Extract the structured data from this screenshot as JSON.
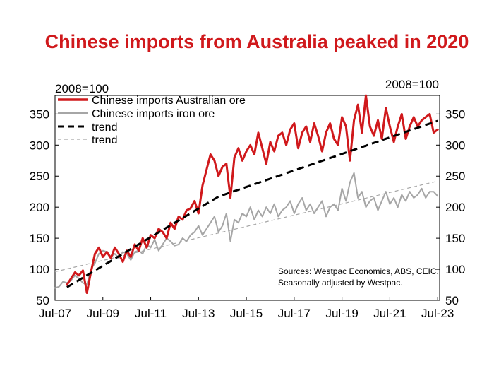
{
  "chart_data": {
    "type": "line",
    "title": "Chinese imports from Australia peaked in 2020",
    "left_unit": "2008=100",
    "right_unit": "2008=100",
    "ylim": [
      50,
      380
    ],
    "xlim": [
      "2007-07",
      "2023-08"
    ],
    "y_ticks": [
      "50",
      "100",
      "150",
      "200",
      "250",
      "300",
      "350"
    ],
    "x_ticks": [
      "Jul-07",
      "Jul-09",
      "Jul-11",
      "Jul-13",
      "Jul-15",
      "Jul-17",
      "Jul-19",
      "Jul-21",
      "Jul-23"
    ],
    "grid": false,
    "legend_position": "top-left",
    "source_note": [
      "Sources: Westpac Economics, ABS, CEIC.",
      "Seasonally adjusted by Westpac."
    ],
    "series": [
      {
        "name": "Chinese imports Australian ore",
        "color": "#d0191c",
        "style": "solid",
        "x": [
          "2008-01",
          "2008-03",
          "2008-05",
          "2008-07",
          "2008-09",
          "2008-11",
          "2009-01",
          "2009-03",
          "2009-05",
          "2009-07",
          "2009-09",
          "2009-11",
          "2010-01",
          "2010-03",
          "2010-05",
          "2010-07",
          "2010-09",
          "2010-11",
          "2011-01",
          "2011-03",
          "2011-05",
          "2011-07",
          "2011-09",
          "2011-11",
          "2012-01",
          "2012-03",
          "2012-05",
          "2012-07",
          "2012-09",
          "2012-11",
          "2013-01",
          "2013-03",
          "2013-05",
          "2013-07",
          "2013-09",
          "2013-11",
          "2014-01",
          "2014-03",
          "2014-05",
          "2014-07",
          "2014-09",
          "2014-11",
          "2015-01",
          "2015-03",
          "2015-05",
          "2015-07",
          "2015-09",
          "2015-11",
          "2016-01",
          "2016-03",
          "2016-05",
          "2016-07",
          "2016-09",
          "2016-11",
          "2017-01",
          "2017-03",
          "2017-05",
          "2017-07",
          "2017-09",
          "2017-11",
          "2018-01",
          "2018-03",
          "2018-05",
          "2018-07",
          "2018-09",
          "2018-11",
          "2019-01",
          "2019-03",
          "2019-05",
          "2019-07",
          "2019-09",
          "2019-11",
          "2020-01",
          "2020-03",
          "2020-05",
          "2020-07",
          "2020-09",
          "2020-11",
          "2021-01",
          "2021-03",
          "2021-05",
          "2021-07",
          "2021-09",
          "2021-11",
          "2022-01",
          "2022-03",
          "2022-05",
          "2022-07",
          "2022-09",
          "2022-11",
          "2023-01",
          "2023-03",
          "2023-05",
          "2023-07"
        ],
        "values": [
          75,
          85,
          95,
          90,
          98,
          62,
          95,
          125,
          135,
          120,
          128,
          118,
          135,
          125,
          112,
          130,
          120,
          140,
          130,
          150,
          135,
          155,
          150,
          165,
          160,
          150,
          175,
          165,
          185,
          180,
          195,
          198,
          210,
          190,
          235,
          260,
          285,
          275,
          250,
          265,
          270,
          215,
          280,
          295,
          275,
          290,
          300,
          285,
          320,
          295,
          270,
          305,
          290,
          315,
          320,
          300,
          325,
          335,
          295,
          320,
          330,
          305,
          335,
          315,
          290,
          320,
          335,
          310,
          300,
          345,
          330,
          275,
          340,
          365,
          320,
          380,
          330,
          315,
          340,
          310,
          360,
          330,
          305,
          330,
          350,
          310,
          330,
          345,
          330,
          340,
          345,
          350,
          320,
          325
        ]
      },
      {
        "name": "Chinese imports iron ore",
        "color": "#a6a6a6",
        "style": "solid",
        "x": [
          "2007-07",
          "2007-09",
          "2007-11",
          "2008-01",
          "2008-03",
          "2008-05",
          "2008-07",
          "2008-09",
          "2008-11",
          "2009-01",
          "2009-03",
          "2009-05",
          "2009-07",
          "2009-09",
          "2009-11",
          "2010-01",
          "2010-03",
          "2010-05",
          "2010-07",
          "2010-09",
          "2010-11",
          "2011-01",
          "2011-03",
          "2011-05",
          "2011-07",
          "2011-09",
          "2011-11",
          "2012-01",
          "2012-03",
          "2012-05",
          "2012-07",
          "2012-09",
          "2012-11",
          "2013-01",
          "2013-03",
          "2013-05",
          "2013-07",
          "2013-09",
          "2013-11",
          "2014-01",
          "2014-03",
          "2014-05",
          "2014-07",
          "2014-09",
          "2014-11",
          "2015-01",
          "2015-03",
          "2015-05",
          "2015-07",
          "2015-09",
          "2015-11",
          "2016-01",
          "2016-03",
          "2016-05",
          "2016-07",
          "2016-09",
          "2016-11",
          "2017-01",
          "2017-03",
          "2017-05",
          "2017-07",
          "2017-09",
          "2017-11",
          "2018-01",
          "2018-03",
          "2018-05",
          "2018-07",
          "2018-09",
          "2018-11",
          "2019-01",
          "2019-03",
          "2019-05",
          "2019-07",
          "2019-09",
          "2019-11",
          "2020-01",
          "2020-03",
          "2020-05",
          "2020-07",
          "2020-09",
          "2020-11",
          "2021-01",
          "2021-03",
          "2021-05",
          "2021-07",
          "2021-09",
          "2021-11",
          "2022-01",
          "2022-03",
          "2022-05",
          "2022-07",
          "2022-09",
          "2022-11",
          "2023-01",
          "2023-03",
          "2023-05",
          "2023-07"
        ],
        "values": [
          70,
          72,
          80,
          78,
          82,
          90,
          85,
          78,
          75,
          100,
          110,
          125,
          130,
          128,
          120,
          125,
          118,
          128,
          125,
          115,
          128,
          130,
          125,
          140,
          135,
          148,
          130,
          140,
          150,
          145,
          138,
          140,
          150,
          145,
          155,
          160,
          170,
          155,
          165,
          175,
          185,
          160,
          170,
          190,
          145,
          180,
          175,
          190,
          185,
          200,
          180,
          195,
          185,
          200,
          190,
          205,
          185,
          195,
          200,
          210,
          190,
          205,
          215,
          195,
          205,
          190,
          200,
          210,
          185,
          200,
          205,
          195,
          230,
          210,
          240,
          255,
          215,
          225,
          200,
          210,
          215,
          195,
          210,
          225,
          205,
          215,
          200,
          220,
          210,
          225,
          215,
          220,
          230,
          215,
          225,
          225,
          218
        ]
      },
      {
        "name": "trend",
        "color": "#000000",
        "style": "dashed-bold",
        "x": [
          "2008-01",
          "2014-05",
          "2023-07"
        ],
        "values": [
          71,
          217,
          339
        ]
      },
      {
        "name": "trend",
        "color": "#a6a6a6",
        "style": "dashed-thin",
        "x": [
          "2007-07",
          "2023-07"
        ],
        "values": [
          96,
          242
        ]
      }
    ]
  }
}
